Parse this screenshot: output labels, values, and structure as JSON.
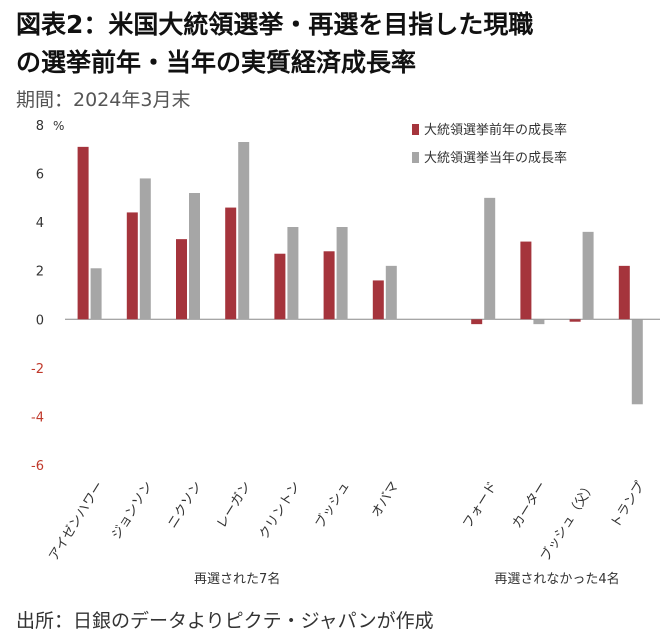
{
  "header": {
    "title_line1": "図表2：米国大統領選挙・再選を目指した現職",
    "title_line2": "の選挙前年・当年の実質経済成長率",
    "period": "期間：2024年3月末"
  },
  "footer": {
    "source": "出所：日銀のデータよりピクテ・ジャパンが作成"
  },
  "chart_data": {
    "type": "bar",
    "unit_label": "%",
    "ylim": [
      -6,
      8
    ],
    "yticks": [
      8,
      6,
      4,
      2,
      0,
      -2,
      -4,
      -6
    ],
    "categories": [
      "アイゼンハワー",
      "ジョンソン",
      "ニクソン",
      "レーガン",
      "クリントン",
      "ブッシュ",
      "オバマ",
      "フォード",
      "カーター",
      "ブッシュ（父）",
      "トランプ"
    ],
    "groups": [
      {
        "label": "再選された7名",
        "count": 7
      },
      {
        "label": "再選されなかった4名",
        "count": 4
      }
    ],
    "series": [
      {
        "name": "大統領選挙前年の成長率",
        "color": "#a5343c",
        "values": [
          7.1,
          4.4,
          3.3,
          4.6,
          2.7,
          2.8,
          1.6,
          -0.2,
          3.2,
          -0.1,
          2.2
        ]
      },
      {
        "name": "大統領選挙当年の成長率",
        "color": "#a6a6a6",
        "values": [
          2.1,
          5.8,
          5.2,
          7.3,
          3.8,
          3.8,
          2.2,
          5.0,
          -0.2,
          3.6,
          -3.5
        ]
      }
    ],
    "legend_position": "top-right",
    "grid": false,
    "colors": {
      "negative_tick": "#c0392b",
      "axis": "#888888"
    }
  }
}
